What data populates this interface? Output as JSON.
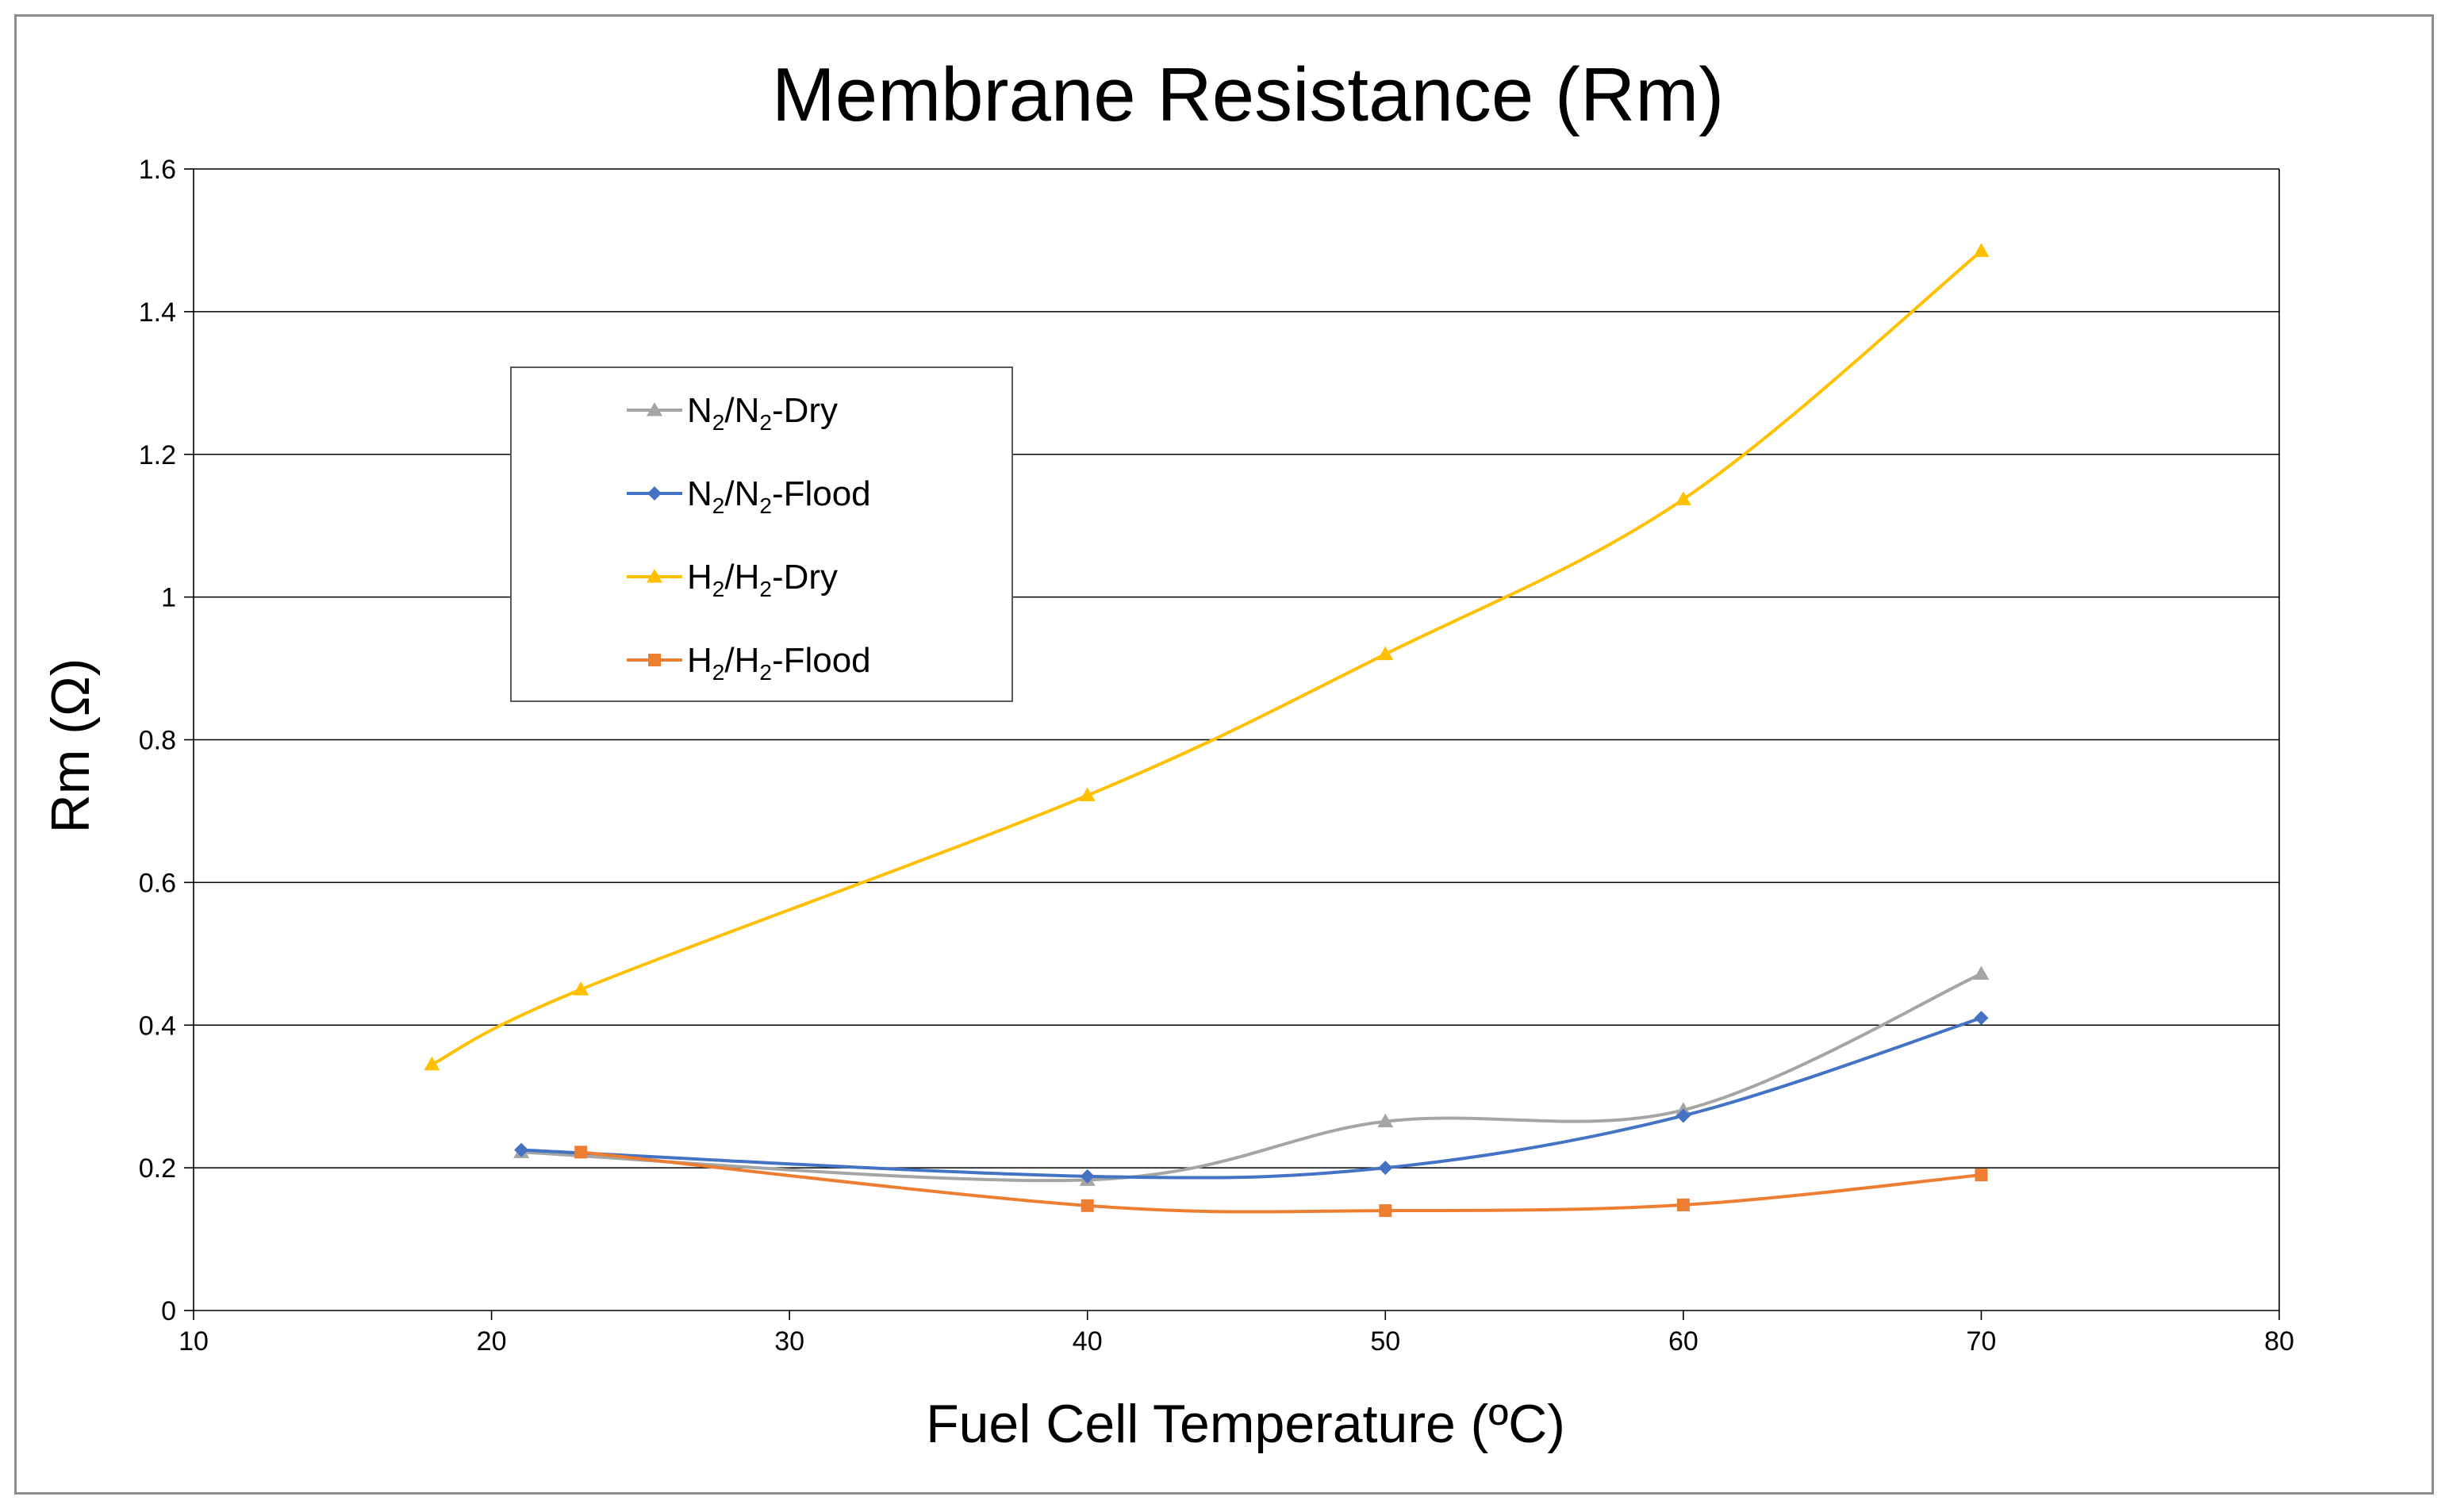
{
  "chart_data": {
    "type": "line",
    "title": "Membrane Resistance (Rm)",
    "xlabel": "Fuel Cell Temperature (ºC)",
    "ylabel": "Rm (Ω)",
    "xlim": [
      10,
      80
    ],
    "ylim": [
      0,
      1.6
    ],
    "xticks": [
      10,
      20,
      30,
      40,
      50,
      60,
      70,
      80
    ],
    "yticks": [
      0,
      0.2,
      0.4,
      0.6,
      0.8,
      1,
      1.2,
      1.4,
      1.6
    ],
    "ytick_labels": [
      "0",
      "0.2",
      "0.4",
      "0.6",
      "0.8",
      "1",
      "1.2",
      "1.4",
      "1.6"
    ],
    "grid": "horizontal",
    "legend_position": "upper-left",
    "series": [
      {
        "name": "N2/N2-Dry",
        "legend_parts": [
          "N",
          "2",
          "/N",
          "2",
          "-Dry"
        ],
        "color": "#a5a5a5",
        "marker": "triangle",
        "x": [
          21,
          40,
          50,
          60,
          70
        ],
        "y": [
          0.222,
          0.183,
          0.265,
          0.281,
          0.472
        ]
      },
      {
        "name": "N2/N2-Flood",
        "legend_parts": [
          "N",
          "2",
          "/N",
          "2",
          "-Flood"
        ],
        "color": "#4472c4",
        "marker": "diamond",
        "x": [
          21,
          40,
          50,
          60,
          70
        ],
        "y": [
          0.225,
          0.188,
          0.2,
          0.273,
          0.41
        ]
      },
      {
        "name": "H2/H2-Dry",
        "legend_parts": [
          "H",
          "2",
          "/H",
          "2",
          "-Dry"
        ],
        "color": "#ffc000",
        "marker": "triangle",
        "x": [
          18,
          23,
          40,
          50,
          60,
          70
        ],
        "y": [
          0.345,
          0.45,
          0.722,
          0.92,
          1.137,
          1.485
        ]
      },
      {
        "name": "H2/H2-Flood",
        "legend_parts": [
          "H",
          "2",
          "/H",
          "2",
          "-Flood"
        ],
        "color": "#ed7d31",
        "marker": "square",
        "x": [
          23,
          40,
          50,
          60,
          70
        ],
        "y": [
          0.222,
          0.147,
          0.14,
          0.148,
          0.19
        ]
      }
    ]
  }
}
